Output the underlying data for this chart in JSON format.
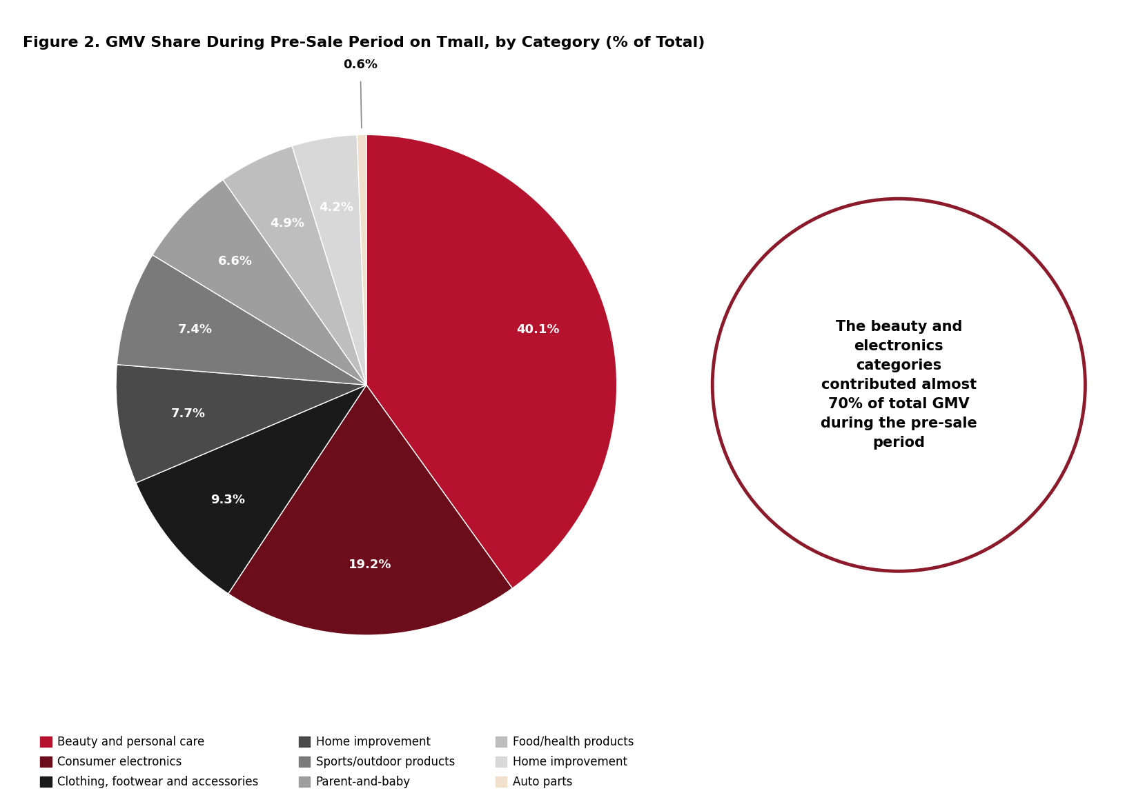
{
  "title": "Figure 2. GMV Share During Pre-Sale Period on Tmall, by Category (% of Total)",
  "slices": [
    {
      "label": "Beauty and personal care",
      "value": 40.1,
      "color": "#B5122E"
    },
    {
      "label": "Consumer electronics",
      "value": 19.2,
      "color": "#6B0D1A"
    },
    {
      "label": "Clothing, footwear and accessories",
      "value": 9.3,
      "color": "#1A1A1A"
    },
    {
      "label": "Home improvement",
      "value": 7.7,
      "color": "#4A4A4A"
    },
    {
      "label": "Sports/outdoor products",
      "value": 7.4,
      "color": "#7A7A7A"
    },
    {
      "label": "Parent-and-baby",
      "value": 6.6,
      "color": "#9E9E9E"
    },
    {
      "label": "Food/health products",
      "value": 4.9,
      "color": "#BEBEBE"
    },
    {
      "label": "Home improvement",
      "value": 4.2,
      "color": "#D8D8D8"
    },
    {
      "label": "Auto parts",
      "value": 0.6,
      "color": "#F0E0CC"
    }
  ],
  "annotation_text": "The beauty and\nelectronics\ncategories\ncontributed almost\n70% of total GMV\nduring the pre-sale\nperiod",
  "annotation_circle_color": "#8B1A2A",
  "background_color": "#FFFFFF",
  "title_fontsize": 16,
  "label_fontsize": 13,
  "legend_fontsize": 12,
  "header_bar_color": "#000000"
}
